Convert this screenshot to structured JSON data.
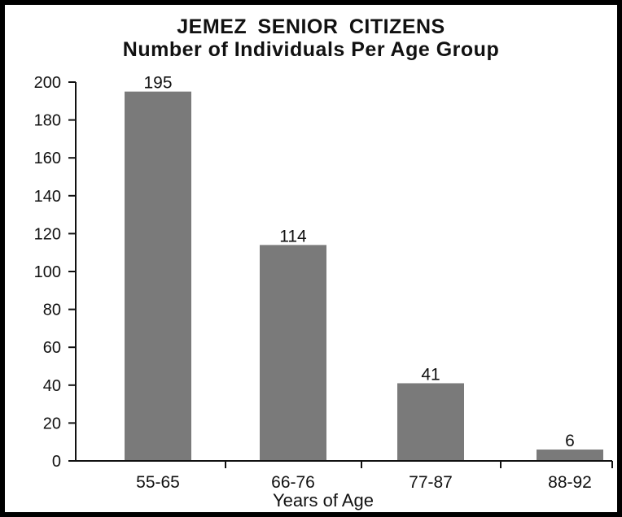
{
  "chart_data": {
    "type": "bar",
    "title": "JEMEZ  SENIOR CITIZENS",
    "subtitle": "Number of Individuals Per Age Group",
    "xlabel": "Years of Age",
    "ylabel": "",
    "categories": [
      "55-65",
      "66-76",
      "77-87",
      "88-92"
    ],
    "values": [
      195,
      114,
      41,
      6
    ],
    "data_labels": [
      "195",
      "114",
      "41",
      "6"
    ],
    "ylim": [
      0,
      200
    ],
    "yticks": [
      0,
      20,
      40,
      60,
      80,
      100,
      120,
      140,
      160,
      180,
      200
    ],
    "grid": false,
    "legend": "none",
    "bar_color": "#7a7a7a",
    "axis_color": "#111111"
  }
}
